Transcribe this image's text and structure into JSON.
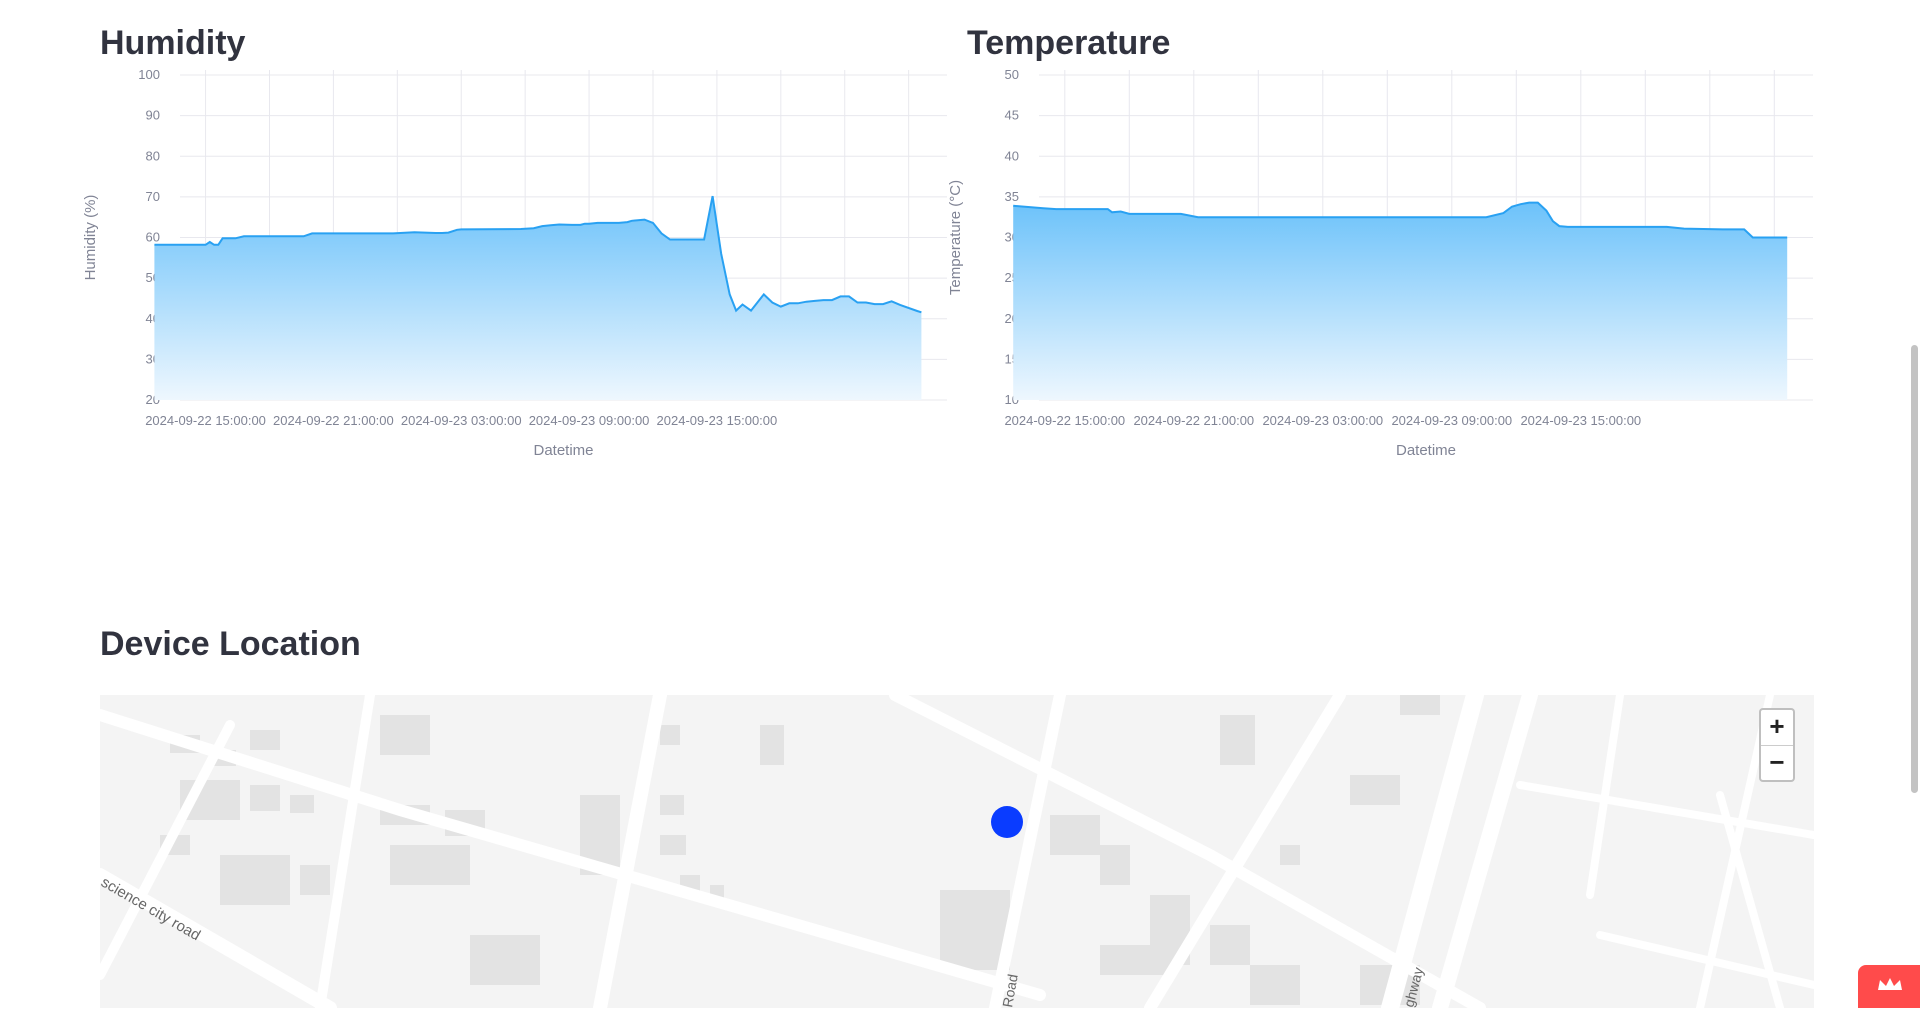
{
  "charts": {
    "humidity": {
      "title": "Humidity"
    },
    "temperature": {
      "title": "Temperature"
    }
  },
  "chart_data": [
    {
      "type": "area",
      "title": "Humidity",
      "xlabel": "Datetime",
      "ylabel": "Humidity (%)",
      "ylim": [
        20,
        100
      ],
      "yticks": [
        20,
        30,
        40,
        50,
        60,
        70,
        80,
        90,
        100
      ],
      "xticks": [
        "2024-09-22 15:00:00",
        "2024-09-22 21:00:00",
        "2024-09-23 03:00:00",
        "2024-09-23 09:00:00",
        "2024-09-23 15:00:00"
      ],
      "x_hours_range": [
        -1.2,
        4.8
      ],
      "x_hours": [
        -1.2,
        1.2,
        1.4,
        1.6,
        1.8,
        2.0,
        2.6,
        3.0,
        5.8,
        6.2,
        10.0,
        11.0,
        12.0,
        12.3,
        12.6,
        13.0,
        13.2,
        16.0,
        16.6,
        17.0,
        17.4,
        17.8,
        18.4,
        18.8,
        19.0,
        19.2,
        19.6,
        20.0,
        20.6,
        21.0,
        21.2,
        21.8,
        22.2,
        22.6,
        23.0,
        23.6,
        24.2,
        24.6,
        25.0,
        25.4,
        25.8,
        26.1,
        26.4,
        26.8,
        27.4,
        27.8,
        28.2,
        28.6,
        29.0,
        29.4,
        29.8,
        30.2,
        30.6,
        31.0,
        31.4,
        31.8,
        32.2,
        32.6,
        33.0,
        33.4,
        33.8,
        34.6,
        34.8
      ],
      "values": [
        58.2,
        58.2,
        58.9,
        58.2,
        58.2,
        59.8,
        59.8,
        60.3,
        60.3,
        61.0,
        61.0,
        61.3,
        61.1,
        61.1,
        61.2,
        61.9,
        62.0,
        62.1,
        62.3,
        62.8,
        63.0,
        63.2,
        63.1,
        63.1,
        63.4,
        63.4,
        63.6,
        63.6,
        63.6,
        63.8,
        64.1,
        64.4,
        63.6,
        61.0,
        59.5,
        59.5,
        59.5,
        59.5,
        70.2,
        56.0,
        46.0,
        42.0,
        43.5,
        42.0,
        46.0,
        44.0,
        43.0,
        43.8,
        43.8,
        44.2,
        44.4,
        44.6,
        44.6,
        45.5,
        45.5,
        44.0,
        44.0,
        43.6,
        43.6,
        44.3,
        43.4,
        41.9,
        41.6
      ],
      "grid": true,
      "color": "#29a1f2"
    },
    {
      "type": "area",
      "title": "Temperature",
      "xlabel": "Datetime",
      "ylabel": "Temperature (°C)",
      "ylim": [
        10,
        50
      ],
      "yticks": [
        10,
        15,
        20,
        25,
        30,
        35,
        40,
        45,
        50
      ],
      "xticks": [
        "2024-09-22 15:00:00",
        "2024-09-22 21:00:00",
        "2024-09-23 03:00:00",
        "2024-09-23 09:00:00",
        "2024-09-23 15:00:00"
      ],
      "x_hours_range": [
        -1.2,
        4.8
      ],
      "x_hours": [
        -1.2,
        0.2,
        0.8,
        2.0,
        3.2,
        3.4,
        3.8,
        4.2,
        4.6,
        6.0,
        6.6,
        7.4,
        12.0,
        19.0,
        20.8,
        21.6,
        22.0,
        22.4,
        22.8,
        23.2,
        23.6,
        23.9,
        24.2,
        24.6,
        25.0,
        25.6,
        26.2,
        26.8,
        27.4,
        28.0,
        28.6,
        29.2,
        30.0,
        31.8,
        32.8,
        33.2,
        34.4,
        34.8
      ],
      "values": [
        33.9,
        33.6,
        33.5,
        33.5,
        33.5,
        33.1,
        33.2,
        32.9,
        32.9,
        32.9,
        32.9,
        32.5,
        32.5,
        32.5,
        32.5,
        33.0,
        33.8,
        34.1,
        34.3,
        34.3,
        33.3,
        32.0,
        31.4,
        31.3,
        31.3,
        31.3,
        31.3,
        31.3,
        31.3,
        31.3,
        31.3,
        31.3,
        31.1,
        31.0,
        31.0,
        30.0,
        30.0,
        30.0
      ],
      "grid": true,
      "color": "#29a1f2"
    }
  ],
  "location": {
    "title": "Device Location",
    "zoom_in": "+",
    "zoom_out": "−",
    "street_labels": [
      "science city road",
      "Road",
      "ghway"
    ],
    "marker_color": "#0a3cff"
  }
}
